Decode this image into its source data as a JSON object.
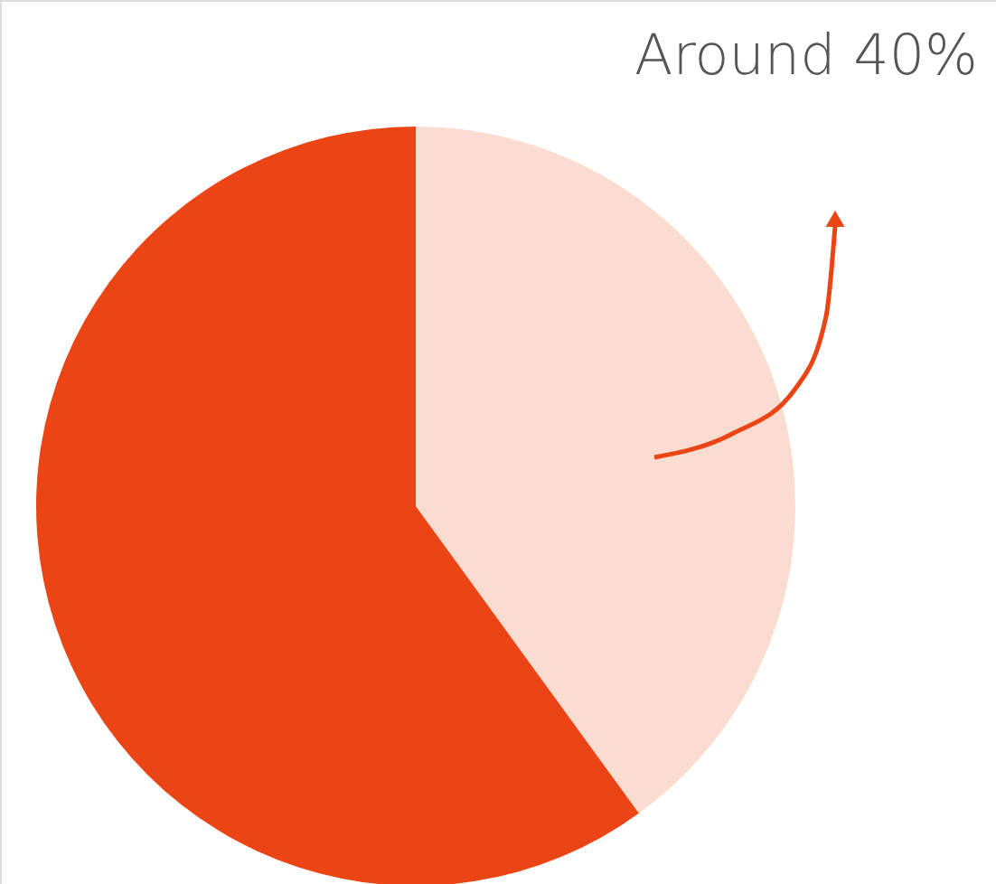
{
  "chart_data": {
    "type": "pie",
    "categories": [
      null,
      null
    ],
    "values": [
      40,
      60
    ],
    "colors": [
      "#fbdcd1",
      "#ec4515"
    ],
    "annotations": [
      "Around 40%"
    ]
  }
}
